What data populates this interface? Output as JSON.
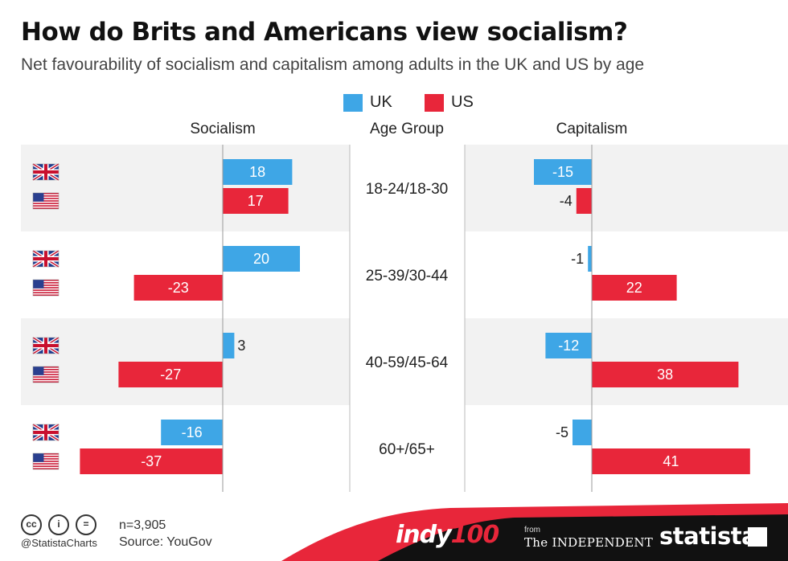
{
  "header": {
    "title": "How do Brits and Americans view socialism?",
    "subtitle": "Net favourability of socialism and capitalism among adults in the UK and US by age"
  },
  "legend": {
    "items": [
      {
        "label": "UK",
        "color": "#3ea6e6"
      },
      {
        "label": "US",
        "color": "#e8263a"
      }
    ]
  },
  "columns": {
    "left": "Socialism",
    "middle": "Age Group",
    "right": "Capitalism"
  },
  "chart_data": {
    "type": "bar",
    "orientation": "horizontal",
    "categories": [
      "18-24/18-30",
      "25-39/30-44",
      "40-59/45-64",
      "60+/65+"
    ],
    "series": [
      {
        "name": "UK",
        "color": "#3ea6e6",
        "socialism": [
          18,
          20,
          3,
          -16
        ],
        "capitalism": [
          -15,
          -1,
          -12,
          -5
        ]
      },
      {
        "name": "US",
        "color": "#e8263a",
        "socialism": [
          17,
          -23,
          -27,
          -37
        ],
        "capitalism": [
          -4,
          22,
          38,
          41
        ]
      }
    ],
    "row_icons": [
      "uk-flag-icon",
      "us-flag-icon"
    ]
  },
  "footer": {
    "cc_icons": [
      "cc",
      "i",
      "="
    ],
    "handle": "@StatistaCharts",
    "sample": "n=3,905",
    "source": "Source: YouGov",
    "logos": {
      "indy_prefix": "indy",
      "indy_suffix": "100",
      "from": "from",
      "independent": "The INDEPENDENT",
      "statista": "statista"
    }
  }
}
